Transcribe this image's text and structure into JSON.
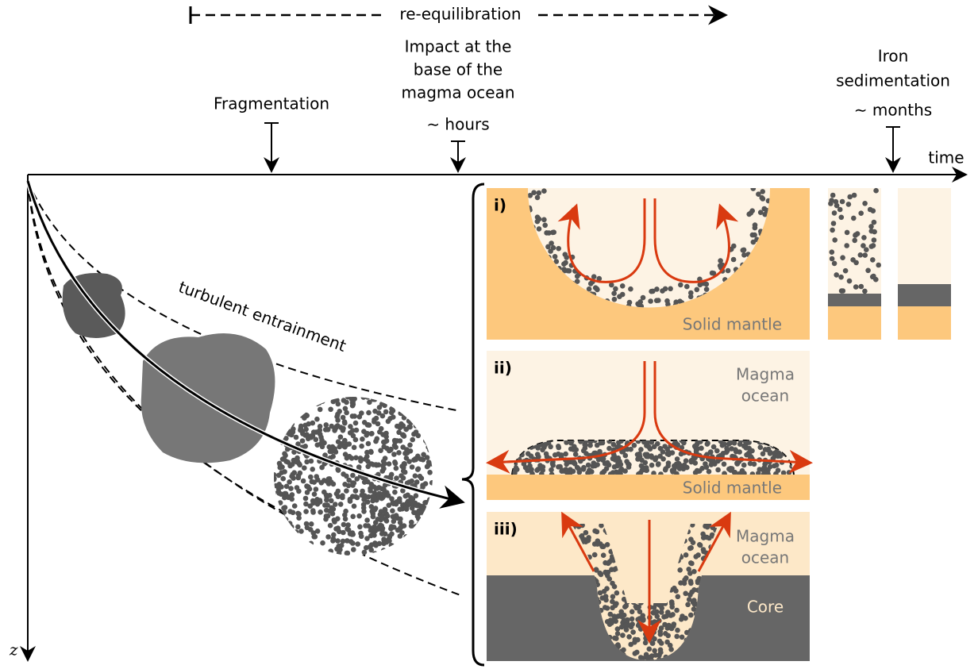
{
  "timeline": {
    "re_equilibration": "re-equilibration",
    "fragmentation": "Fragmentation",
    "impact": [
      "Impact at the",
      "base of the",
      "magma ocean",
      "∼ hours"
    ],
    "iron": [
      "Iron",
      "sedimentation",
      "∼ months"
    ],
    "time_label": "time",
    "depth_label": "z"
  },
  "entrainment_label": "turbulent entrainment",
  "panels": [
    {
      "label": "i)",
      "texts": [
        "Solid mantle"
      ]
    },
    {
      "label": "ii)",
      "texts": [
        "Magma",
        "ocean",
        "Solid mantle"
      ]
    },
    {
      "label": "iii)",
      "texts": [
        "Magma",
        "ocean",
        "Core"
      ]
    }
  ]
}
